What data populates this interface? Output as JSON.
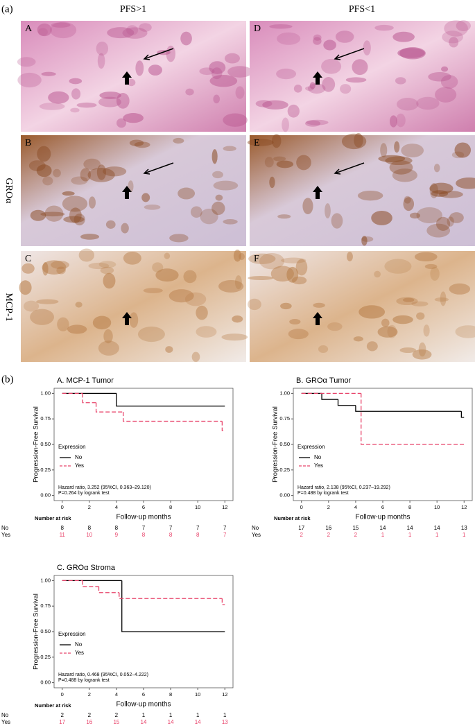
{
  "figure": {
    "label_a": "(a)",
    "label_b": "(b)",
    "columns": [
      "PFS>1",
      "PFS<1"
    ],
    "rows": [
      "GROα",
      "MCP-1"
    ],
    "panels": [
      "A",
      "B",
      "C",
      "D",
      "E",
      "F"
    ]
  },
  "chart_data": [
    {
      "type": "step",
      "title": "A. MCP-1 Tumor",
      "x_label": "Follow-up months",
      "y_label": "Progression-Free Survival",
      "legend_title": "Expression",
      "xlim": [
        -0.6,
        12.6
      ],
      "ylim": [
        -0.05,
        1.05
      ],
      "xticks": [
        0,
        2,
        4,
        6,
        8,
        10,
        12
      ],
      "yticks": [
        {
          "value": 0,
          "label": "0.00"
        },
        {
          "value": 0.25,
          "label": "0.25"
        },
        {
          "value": 0.5,
          "label": "0.50"
        },
        {
          "value": 0.75,
          "label": "0.75"
        },
        {
          "value": 1,
          "label": "1.00"
        }
      ],
      "series": [
        {
          "name": "No",
          "color": "#000000",
          "x": [
            0,
            4,
            12
          ],
          "values": [
            1,
            0.875,
            0.875
          ]
        },
        {
          "name": "Yes",
          "color": "#e8436a",
          "x": [
            0,
            1.5,
            2.5,
            4.5,
            11.8,
            12
          ],
          "values": [
            1,
            0.909,
            0.818,
            0.727,
            0.636,
            0.636
          ]
        }
      ],
      "annotations": [
        "Hazard ratio, 3.252 (95%CI, 0.363–29.120)",
        "P=0.264 by logrank test"
      ],
      "risk_table": {
        "label": "Number at risk",
        "rows": [
          {
            "name": "No",
            "values": [
              8,
              8,
              8,
              7,
              7,
              7,
              7
            ]
          },
          {
            "name": "Yes",
            "values": [
              11,
              10,
              9,
              8,
              8,
              8,
              7
            ]
          }
        ]
      }
    },
    {
      "type": "step",
      "title": "B. GROα Tumor",
      "x_label": "Follow-up months",
      "y_label": "Progression-Free Survival",
      "legend_title": "Expression",
      "xlim": [
        -0.6,
        12.6
      ],
      "ylim": [
        -0.05,
        1.05
      ],
      "xticks": [
        0,
        2,
        4,
        6,
        8,
        10,
        12
      ],
      "yticks": [
        {
          "value": 0,
          "label": "0.00"
        },
        {
          "value": 0.25,
          "label": "0.25"
        },
        {
          "value": 0.5,
          "label": "0.50"
        },
        {
          "value": 0.75,
          "label": "0.75"
        },
        {
          "value": 1,
          "label": "1.00"
        }
      ],
      "series": [
        {
          "name": "No",
          "color": "#000000",
          "x": [
            0,
            1.5,
            2.7,
            4,
            11.8,
            12
          ],
          "values": [
            1,
            0.941,
            0.882,
            0.824,
            0.765,
            0.765
          ]
        },
        {
          "name": "Yes",
          "color": "#e8436a",
          "x": [
            0,
            4.4,
            12
          ],
          "values": [
            1,
            0.5,
            0.5
          ]
        }
      ],
      "annotations": [
        "Hazard ratio, 2.138 (95%CI, 0.237–19.292)",
        "P=0.488 by logrank test"
      ],
      "risk_table": {
        "label": "Number at risk",
        "rows": [
          {
            "name": "No",
            "values": [
              17,
              16,
              15,
              14,
              14,
              14,
              13
            ]
          },
          {
            "name": "Yes",
            "values": [
              2,
              2,
              2,
              1,
              1,
              1,
              1
            ]
          }
        ]
      }
    },
    {
      "type": "step",
      "title": "C. GROα Stroma",
      "x_label": "Follow-up months",
      "y_label": "Progression-Free Survival",
      "legend_title": "Expression",
      "xlim": [
        -0.6,
        12.6
      ],
      "ylim": [
        -0.05,
        1.05
      ],
      "xticks": [
        0,
        2,
        4,
        6,
        8,
        10,
        12
      ],
      "yticks": [
        {
          "value": 0,
          "label": "0.00"
        },
        {
          "value": 0.25,
          "label": "0.25"
        },
        {
          "value": 0.5,
          "label": "0.50"
        },
        {
          "value": 0.75,
          "label": "0.75"
        },
        {
          "value": 1,
          "label": "1.00"
        }
      ],
      "series": [
        {
          "name": "No",
          "color": "#000000",
          "x": [
            0,
            4.4,
            12
          ],
          "values": [
            1,
            0.5,
            0.5
          ]
        },
        {
          "name": "Yes",
          "color": "#e8436a",
          "x": [
            0,
            1.5,
            2.7,
            4.2,
            11.8,
            12
          ],
          "values": [
            1,
            0.941,
            0.882,
            0.824,
            0.765,
            0.765
          ]
        }
      ],
      "annotations": [
        "Hazard ratio, 0.468 (95%CI, 0.052–4.222)",
        "P=0.488 by logrank test"
      ],
      "risk_table": {
        "label": "Number at risk",
        "rows": [
          {
            "name": "No",
            "values": [
              2,
              2,
              2,
              1,
              1,
              1,
              1
            ]
          },
          {
            "name": "Yes",
            "values": [
              17,
              16,
              15,
              14,
              14,
              14,
              13
            ]
          }
        ]
      }
    }
  ]
}
